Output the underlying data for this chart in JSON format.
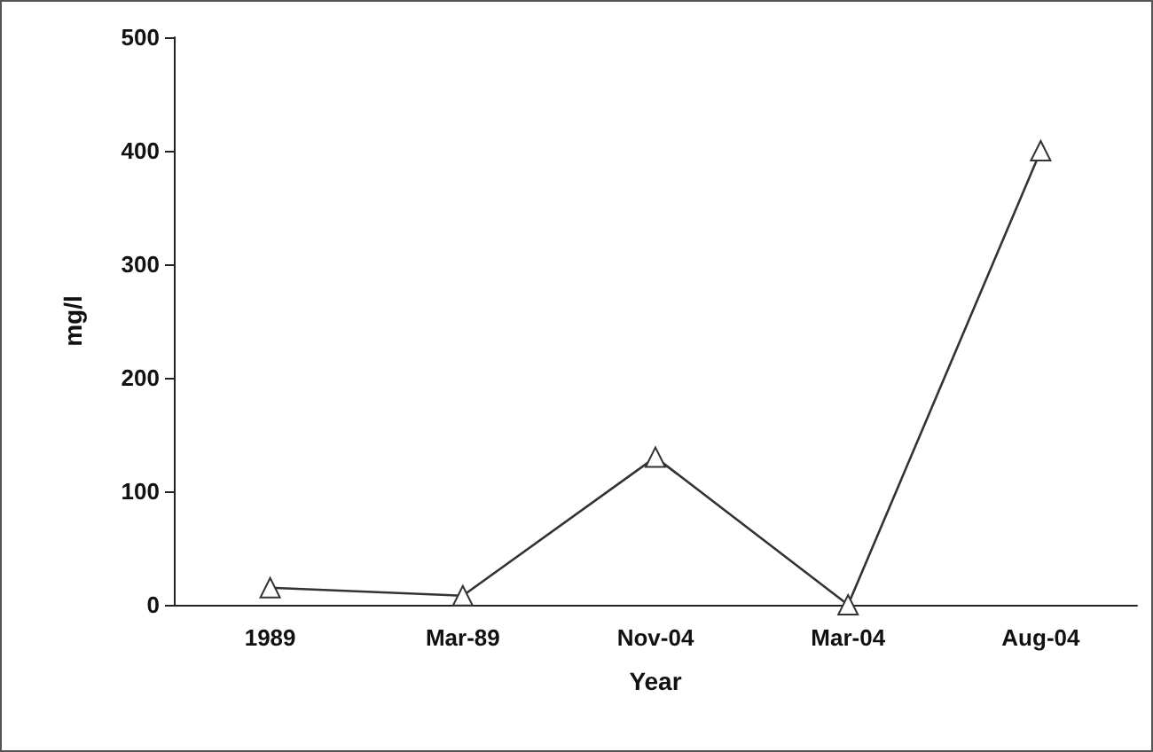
{
  "chart_data": {
    "type": "line",
    "xlabel": "Year",
    "ylabel": "mg/l",
    "categories": [
      "1989",
      "Mar-89",
      "Nov-04",
      "Mar-04",
      "Aug-04"
    ],
    "series": [
      {
        "color": "#333333",
        "values": [
          15,
          8,
          130,
          0,
          400
        ]
      }
    ],
    "ylim": [
      0,
      500
    ],
    "yticks": [
      0,
      100,
      200,
      300,
      400,
      500
    ],
    "grid": false,
    "marker": "triangle",
    "line_style": "solid"
  }
}
